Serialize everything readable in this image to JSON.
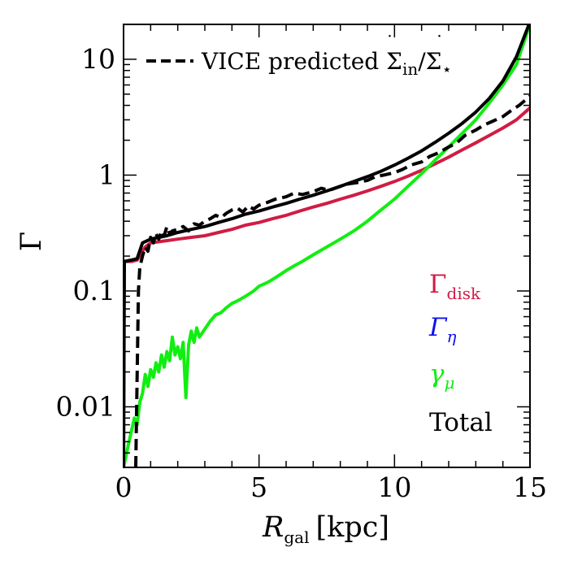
{
  "chart_data": {
    "type": "line",
    "xlabel": {
      "symbol": "R",
      "sub": "gal",
      "unit": "[kpc]"
    },
    "ylabel": "Γ",
    "x_range": [
      0,
      15
    ],
    "y_range": [
      0.003,
      20
    ],
    "y_scale": "log",
    "x_ticks": [
      0,
      5,
      10,
      15
    ],
    "x_tick_labels": [
      "0",
      "5",
      "10",
      "15"
    ],
    "y_ticks": [
      0.01,
      0.1,
      1,
      10
    ],
    "y_tick_labels": [
      "0.01",
      "0.1",
      "1",
      "10"
    ],
    "legend": {
      "placement": "top-left",
      "entry": {
        "text": "VICE predicted ",
        "sigma": "Σ",
        "sub1": "in",
        "slash": "/",
        "sub2": "⋆"
      }
    },
    "annotations": [
      {
        "symbol": "Γ",
        "sub": "disk",
        "color": "#d01c44"
      },
      {
        "symbol": "Γ",
        "sub": "η",
        "color": "#1010ee"
      },
      {
        "symbol": "γ",
        "sub": "μ",
        "color": "#11ee11"
      },
      {
        "symbol": "Total",
        "sub": "",
        "color": "#000000"
      }
    ],
    "series": [
      {
        "key": "gamma_disk",
        "color": "#d01c44",
        "style": "solid",
        "points": [
          [
            0.0,
            0.003
          ],
          [
            0.02,
            0.18
          ],
          [
            0.3,
            0.18
          ],
          [
            0.5,
            0.185
          ],
          [
            0.8,
            0.24
          ],
          [
            1.0,
            0.26
          ],
          [
            1.5,
            0.27
          ],
          [
            2,
            0.28
          ],
          [
            2.5,
            0.29
          ],
          [
            3,
            0.3
          ],
          [
            3.5,
            0.32
          ],
          [
            4,
            0.34
          ],
          [
            4.5,
            0.37
          ],
          [
            5,
            0.39
          ],
          [
            5.5,
            0.42
          ],
          [
            6,
            0.45
          ],
          [
            6.5,
            0.49
          ],
          [
            7,
            0.53
          ],
          [
            7.5,
            0.57
          ],
          [
            8,
            0.62
          ],
          [
            8.5,
            0.67
          ],
          [
            9,
            0.73
          ],
          [
            9.5,
            0.8
          ],
          [
            10,
            0.88
          ],
          [
            10.5,
            0.98
          ],
          [
            11,
            1.1
          ],
          [
            11.5,
            1.25
          ],
          [
            12,
            1.43
          ],
          [
            12.5,
            1.65
          ],
          [
            13,
            1.9
          ],
          [
            13.5,
            2.2
          ],
          [
            14,
            2.55
          ],
          [
            14.5,
            3.0
          ],
          [
            15,
            3.8
          ]
        ]
      },
      {
        "key": "gamma_mu",
        "color": "#11ee11",
        "style": "solid",
        "points": [
          [
            0.0,
            0.003
          ],
          [
            0.2,
            0.005
          ],
          [
            0.4,
            0.008
          ],
          [
            0.5,
            0.007
          ],
          [
            0.6,
            0.011
          ],
          [
            0.7,
            0.013
          ],
          [
            0.8,
            0.019
          ],
          [
            0.9,
            0.015
          ],
          [
            1.0,
            0.021
          ],
          [
            1.1,
            0.018
          ],
          [
            1.2,
            0.024
          ],
          [
            1.3,
            0.02
          ],
          [
            1.4,
            0.028
          ],
          [
            1.5,
            0.022
          ],
          [
            1.6,
            0.03
          ],
          [
            1.7,
            0.025
          ],
          [
            1.8,
            0.04
          ],
          [
            1.9,
            0.028
          ],
          [
            2.0,
            0.033
          ],
          [
            2.1,
            0.026
          ],
          [
            2.2,
            0.036
          ],
          [
            2.3,
            0.012
          ],
          [
            2.4,
            0.034
          ],
          [
            2.5,
            0.045
          ],
          [
            2.6,
            0.036
          ],
          [
            2.7,
            0.048
          ],
          [
            2.8,
            0.04
          ],
          [
            3.0,
            0.047
          ],
          [
            3.2,
            0.055
          ],
          [
            3.4,
            0.062
          ],
          [
            3.6,
            0.065
          ],
          [
            3.8,
            0.072
          ],
          [
            4.0,
            0.078
          ],
          [
            4.2,
            0.082
          ],
          [
            4.5,
            0.09
          ],
          [
            4.8,
            0.1
          ],
          [
            5.0,
            0.11
          ],
          [
            5.3,
            0.118
          ],
          [
            5.6,
            0.13
          ],
          [
            6.0,
            0.15
          ],
          [
            6.3,
            0.165
          ],
          [
            6.6,
            0.18
          ],
          [
            7.0,
            0.205
          ],
          [
            7.5,
            0.24
          ],
          [
            8.0,
            0.28
          ],
          [
            8.5,
            0.33
          ],
          [
            9.0,
            0.4
          ],
          [
            9.5,
            0.5
          ],
          [
            10,
            0.62
          ],
          [
            10.5,
            0.8
          ],
          [
            11,
            1.03
          ],
          [
            11.5,
            1.35
          ],
          [
            12,
            1.75
          ],
          [
            12.5,
            2.3
          ],
          [
            13,
            3.0
          ],
          [
            13.5,
            4.2
          ],
          [
            14,
            6.0
          ],
          [
            14.5,
            9.0
          ],
          [
            15,
            20.0
          ]
        ]
      },
      {
        "key": "total",
        "color": "#000000",
        "style": "solid",
        "points": [
          [
            0.0,
            0.003
          ],
          [
            0.03,
            0.18
          ],
          [
            0.3,
            0.185
          ],
          [
            0.5,
            0.19
          ],
          [
            0.7,
            0.26
          ],
          [
            1.0,
            0.28
          ],
          [
            1.3,
            0.29
          ],
          [
            1.6,
            0.3
          ],
          [
            2,
            0.32
          ],
          [
            2.5,
            0.34
          ],
          [
            3,
            0.36
          ],
          [
            3.5,
            0.39
          ],
          [
            4,
            0.42
          ],
          [
            4.5,
            0.46
          ],
          [
            5,
            0.49
          ],
          [
            5.5,
            0.53
          ],
          [
            6,
            0.57
          ],
          [
            6.5,
            0.62
          ],
          [
            7,
            0.67
          ],
          [
            7.5,
            0.73
          ],
          [
            8,
            0.8
          ],
          [
            8.5,
            0.88
          ],
          [
            9,
            0.97
          ],
          [
            9.5,
            1.08
          ],
          [
            10,
            1.22
          ],
          [
            10.5,
            1.4
          ],
          [
            11,
            1.62
          ],
          [
            11.5,
            1.92
          ],
          [
            12,
            2.3
          ],
          [
            12.5,
            2.8
          ],
          [
            13,
            3.5
          ],
          [
            13.5,
            4.6
          ],
          [
            14,
            6.5
          ],
          [
            14.5,
            10.5
          ],
          [
            15,
            21.0
          ]
        ]
      },
      {
        "key": "vice_predicted",
        "color": "#000000",
        "style": "dashed",
        "points": [
          [
            0.45,
            0.003
          ],
          [
            0.55,
            0.1
          ],
          [
            0.6,
            0.16
          ],
          [
            0.7,
            0.2
          ],
          [
            0.8,
            0.24
          ],
          [
            0.9,
            0.22
          ],
          [
            1.0,
            0.29
          ],
          [
            1.1,
            0.26
          ],
          [
            1.2,
            0.31
          ],
          [
            1.3,
            0.28
          ],
          [
            1.4,
            0.33
          ],
          [
            1.5,
            0.3
          ],
          [
            1.6,
            0.36
          ],
          [
            1.7,
            0.31
          ],
          [
            1.8,
            0.33
          ],
          [
            2.0,
            0.34
          ],
          [
            2.2,
            0.36
          ],
          [
            2.4,
            0.33
          ],
          [
            2.6,
            0.38
          ],
          [
            2.8,
            0.37
          ],
          [
            3.0,
            0.4
          ],
          [
            3.2,
            0.42
          ],
          [
            3.4,
            0.45
          ],
          [
            3.6,
            0.43
          ],
          [
            3.8,
            0.47
          ],
          [
            4.0,
            0.5
          ],
          [
            4.2,
            0.52
          ],
          [
            4.4,
            0.48
          ],
          [
            4.6,
            0.54
          ],
          [
            4.8,
            0.51
          ],
          [
            5.0,
            0.55
          ],
          [
            5.3,
            0.58
          ],
          [
            5.6,
            0.62
          ],
          [
            6.0,
            0.65
          ],
          [
            6.3,
            0.7
          ],
          [
            6.6,
            0.68
          ],
          [
            7.0,
            0.72
          ],
          [
            7.3,
            0.77
          ],
          [
            7.6,
            0.74
          ],
          [
            8.0,
            0.8
          ],
          [
            8.3,
            0.84
          ],
          [
            8.6,
            0.86
          ],
          [
            9.0,
            0.9
          ],
          [
            9.3,
            0.97
          ],
          [
            9.6,
            1.0
          ],
          [
            10,
            1.05
          ],
          [
            10.3,
            1.12
          ],
          [
            10.6,
            1.22
          ],
          [
            11,
            1.3
          ],
          [
            11.3,
            1.45
          ],
          [
            11.6,
            1.55
          ],
          [
            12,
            1.75
          ],
          [
            12.3,
            1.9
          ],
          [
            12.6,
            2.2
          ],
          [
            13,
            2.45
          ],
          [
            13.3,
            2.7
          ],
          [
            13.6,
            2.9
          ],
          [
            14,
            3.2
          ],
          [
            14.3,
            3.6
          ],
          [
            14.6,
            4.0
          ],
          [
            15,
            4.8
          ]
        ]
      }
    ]
  }
}
